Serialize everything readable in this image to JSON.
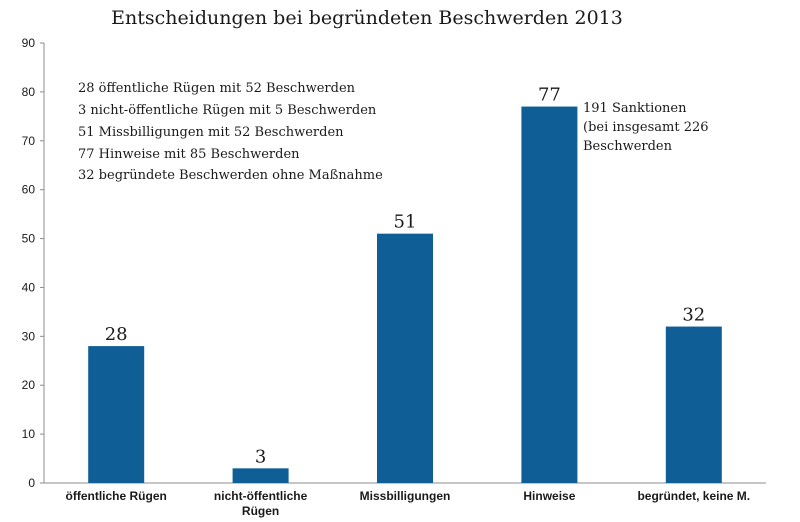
{
  "chart_data": {
    "type": "bar",
    "title": "Entscheidungen bei begründeten Beschwerden 2013",
    "categories": [
      [
        "öffentliche Rügen"
      ],
      [
        "nicht-öffentliche",
        "Rügen"
      ],
      [
        "Missbilligungen"
      ],
      [
        "Hinweise"
      ],
      [
        "begründet, keine M."
      ]
    ],
    "values": [
      28,
      3,
      51,
      77,
      32
    ],
    "data_labels": [
      "28",
      "3",
      "51",
      "77",
      "32"
    ],
    "ylim": [
      0,
      90
    ],
    "yticks": [
      "0",
      "10",
      "20",
      "30",
      "40",
      "50",
      "60",
      "70",
      "80",
      "90"
    ],
    "grid": false,
    "bar_color": "#0f5e96",
    "annotations": {
      "left_box": [
        "28 öffentliche Rügen mit 52 Beschwerden",
        "3 nicht-öffentliche Rügen mit 5 Beschwerden",
        "51 Missbilligungen mit 52 Beschwerden",
        "77 Hinweise mit 85 Beschwerden",
        "32 begründete Beschwerden ohne Maßnahme"
      ],
      "right_box": [
        "191 Sanktionen",
        "(bei insgesamt 226",
        "Beschwerden"
      ]
    }
  }
}
